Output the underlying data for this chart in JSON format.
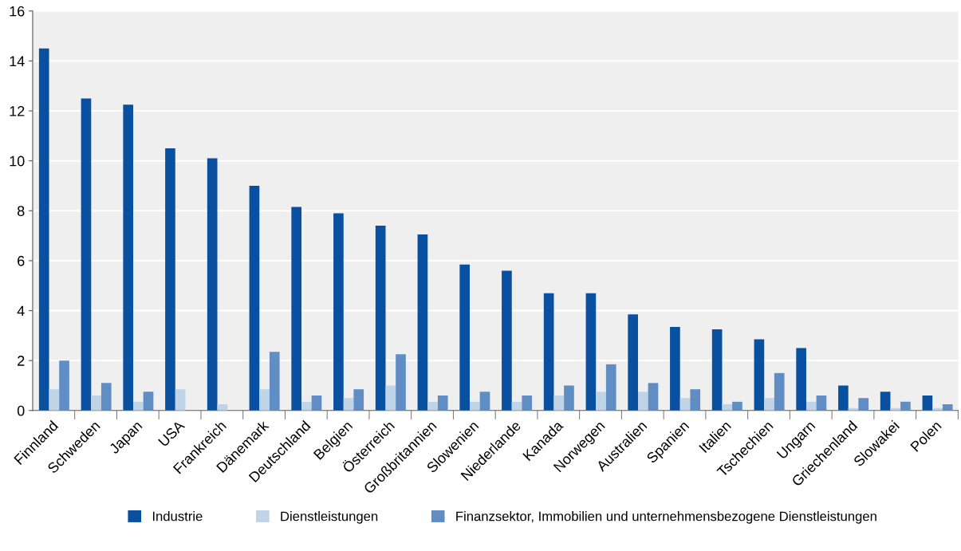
{
  "chart_data": {
    "type": "bar",
    "categories": [
      "Finnland",
      "Schweden",
      "Japan",
      "USA",
      "Frankreich",
      "Dänemark",
      "Deutschland",
      "Belgien",
      "Österreich",
      "Großbritannien",
      "Slowenien",
      "Niederlande",
      "Kanada",
      "Norwegen",
      "Australien",
      "Spanien",
      "Italien",
      "Tschechien",
      "Ungarn",
      "Griechenland",
      "Slowakei",
      "Polen"
    ],
    "series": [
      {
        "name": "Industrie",
        "color": "#0a50a0",
        "values": [
          14.5,
          12.5,
          12.25,
          10.5,
          10.1,
          9.0,
          8.15,
          7.9,
          7.4,
          7.05,
          5.85,
          5.6,
          4.7,
          4.7,
          3.85,
          3.35,
          3.25,
          2.85,
          2.5,
          1.0,
          0.75,
          0.6
        ]
      },
      {
        "name": "Dienstleistungen",
        "color": "#c0d4e8",
        "values": [
          0.85,
          0.6,
          0.35,
          0.85,
          0.25,
          0.85,
          0.35,
          0.5,
          1.0,
          0.35,
          0.35,
          0.35,
          0.6,
          0.75,
          0.75,
          0.5,
          0.25,
          0.5,
          0.35,
          0.1,
          0.1,
          0.1
        ]
      },
      {
        "name": "Finanzsektor, Immobilien und unternehmensbezogene Dienstleistungen",
        "color": "#5f8dc4",
        "values": [
          2.0,
          1.1,
          0.75,
          null,
          null,
          2.35,
          0.6,
          0.85,
          2.25,
          0.6,
          0.75,
          0.6,
          1.0,
          1.85,
          1.1,
          0.85,
          0.35,
          1.5,
          0.6,
          0.5,
          0.35,
          0.25
        ]
      }
    ],
    "ylim": [
      0,
      16
    ],
    "yticks": [
      0,
      2,
      4,
      6,
      8,
      10,
      12,
      14,
      16
    ],
    "grid": "y",
    "legend": "bottom"
  }
}
